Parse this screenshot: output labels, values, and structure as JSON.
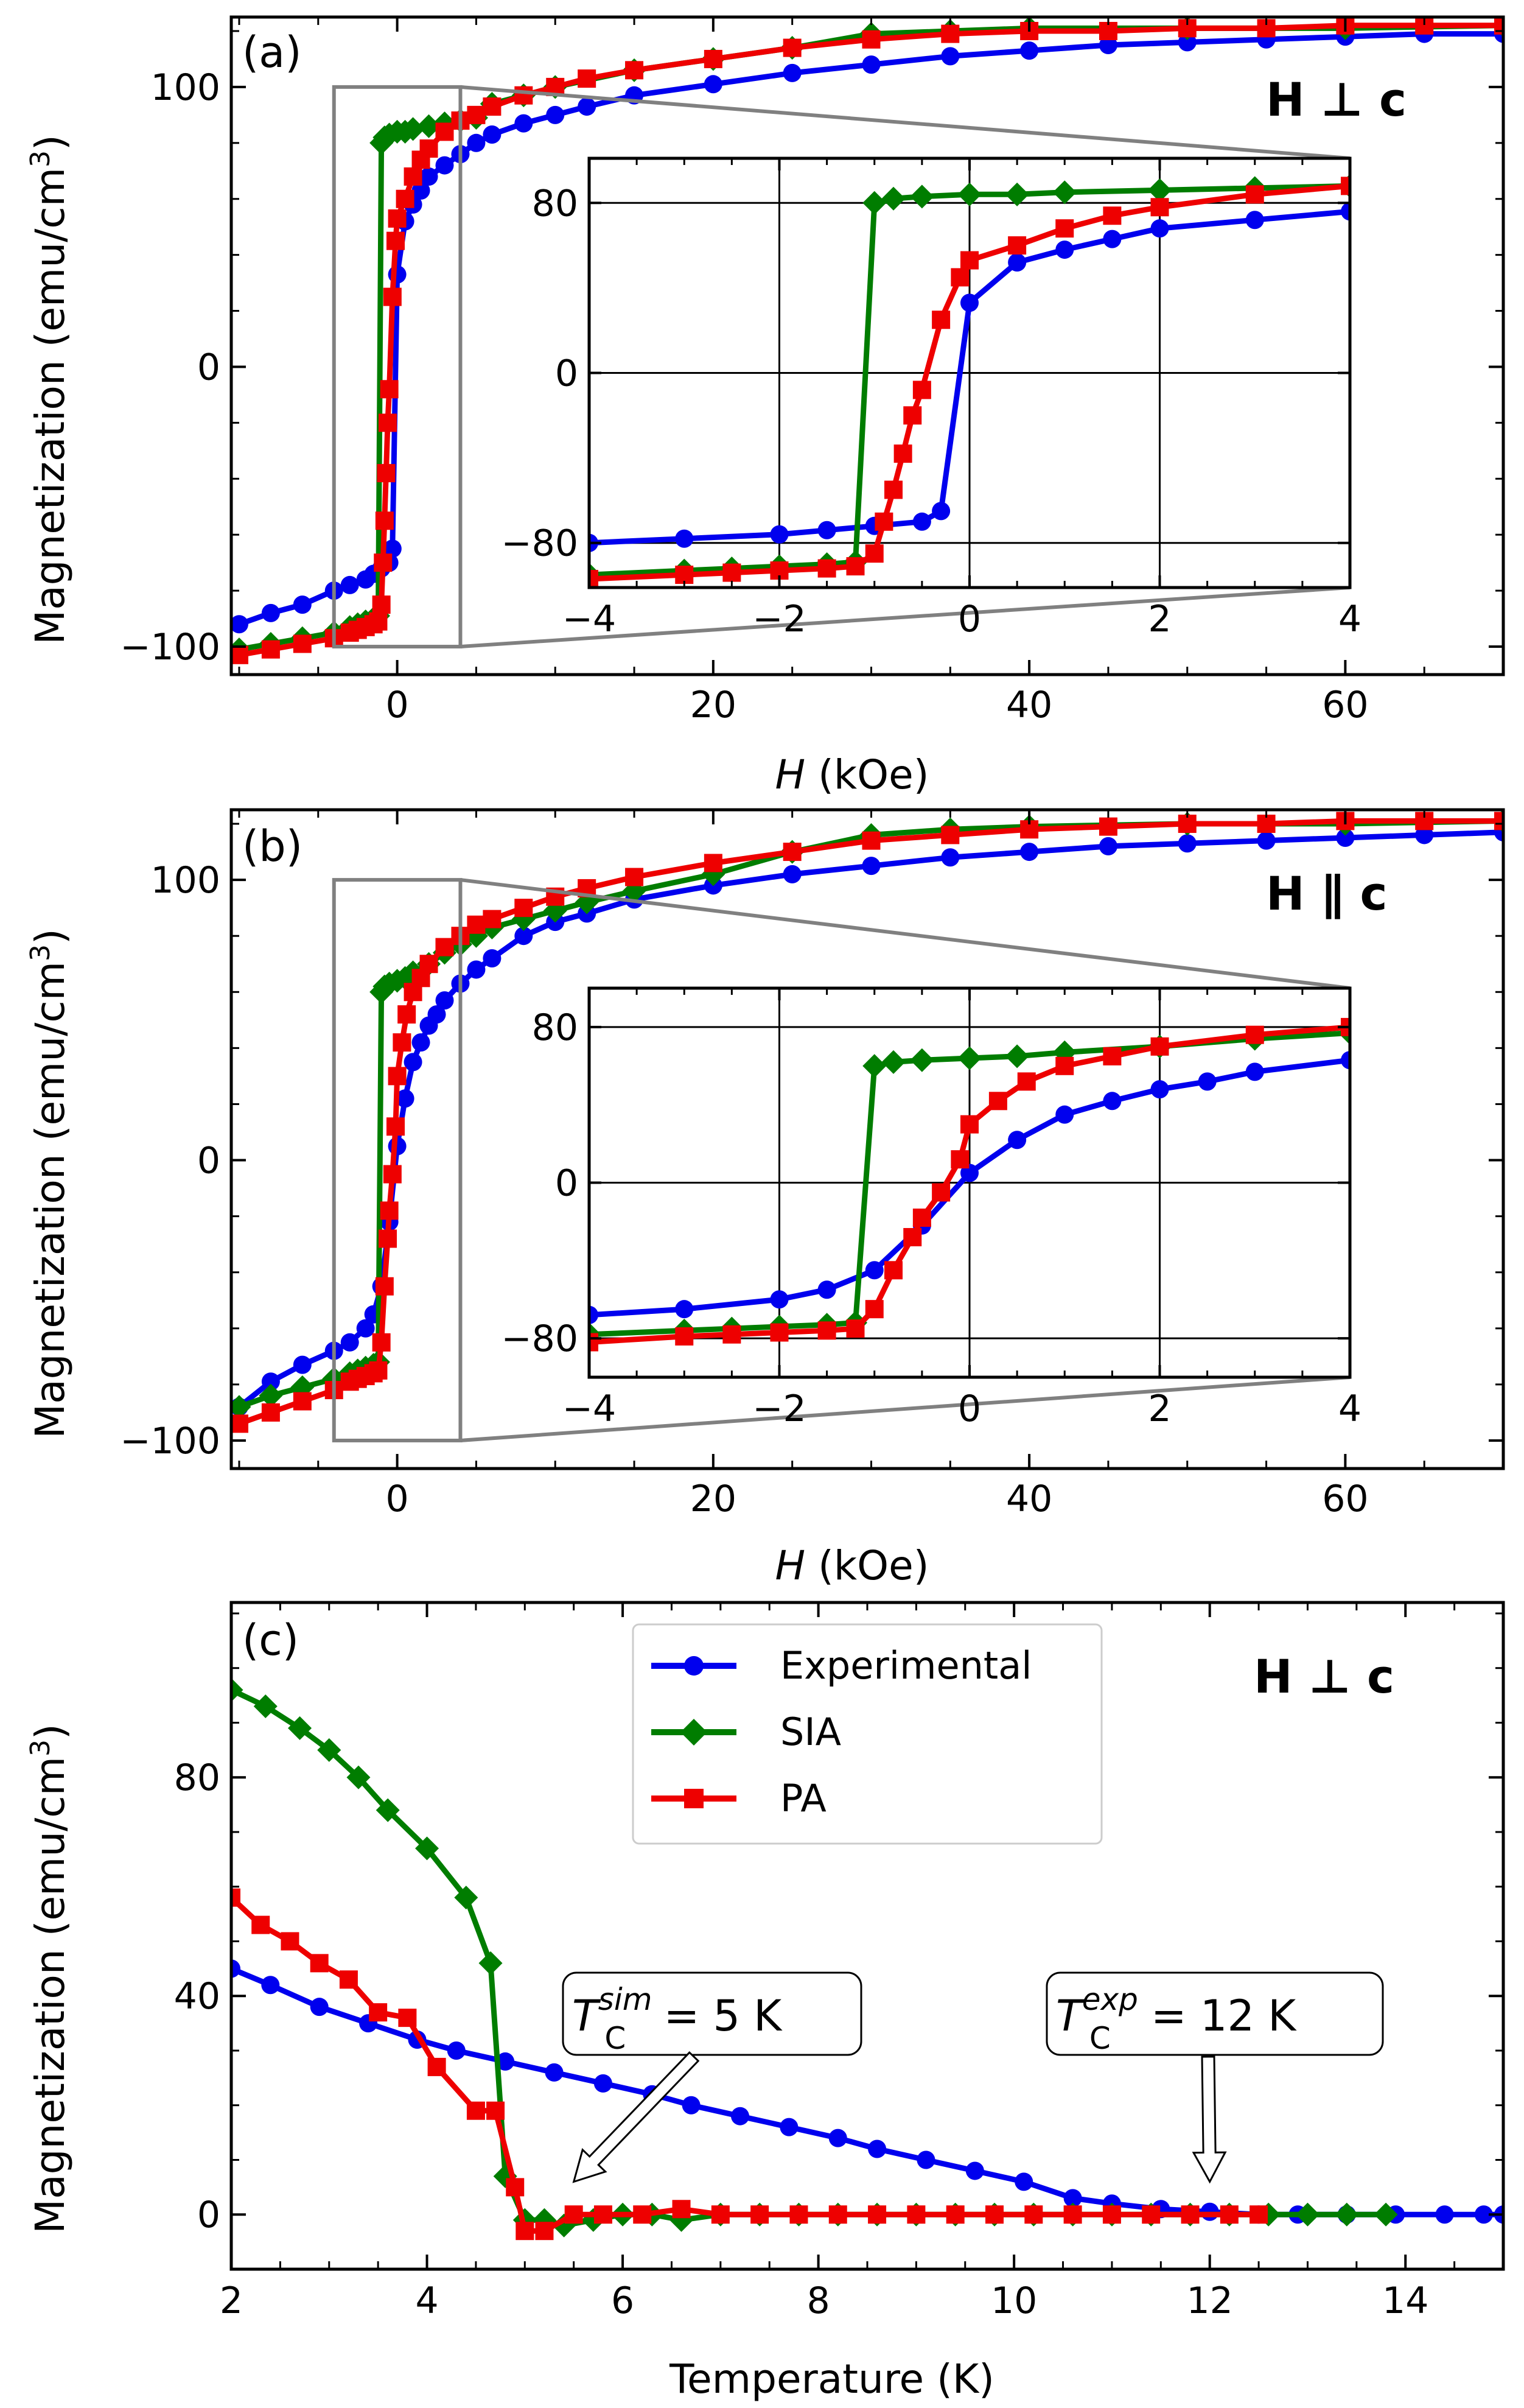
{
  "chart_data": [
    {
      "type": "line",
      "panel_label": "(a)",
      "annotation_bold": "H ⊥ c",
      "xlabel_italic": "H",
      "xlabel_rest": " (kOe)",
      "ylabel": "Magnetization  (emu/cm",
      "ylabel_sup": "3",
      "ylabel_close": ")",
      "xlim": [
        -10.5,
        70
      ],
      "ylim": [
        -110,
        125
      ],
      "xticks": [
        0,
        20,
        40,
        60
      ],
      "xtick_labels": [
        "0",
        "20",
        "40",
        "60"
      ],
      "yticks": [
        -100,
        0,
        100
      ],
      "ytick_labels": [
        "−100",
        "0",
        "100"
      ],
      "zoom_box": {
        "x": [
          -4,
          4
        ],
        "y": [
          -100,
          100
        ]
      },
      "inset": {
        "xlim": [
          -4,
          4
        ],
        "ylim": [
          -101,
          101
        ],
        "xticks": [
          -4,
          -2,
          0,
          2,
          4
        ],
        "xtick_labels": [
          "−4",
          "−2",
          "0",
          "2",
          "4"
        ],
        "yticks": [
          -80,
          0,
          80
        ],
        "ytick_labels": [
          "−80",
          "0",
          "80"
        ],
        "grid": true
      },
      "series": [
        {
          "name": "Experimental",
          "color": "#0000ee",
          "marker": "circle",
          "x": [
            -10,
            -8,
            -6,
            -4,
            -3,
            -2,
            -1.5,
            -1,
            -0.5,
            -0.3,
            0,
            0.5,
            1,
            1.5,
            2,
            3,
            4,
            5,
            6,
            8,
            10,
            12,
            15,
            20,
            25,
            30,
            35,
            40,
            45,
            50,
            55,
            60,
            65,
            70
          ],
          "y": [
            -92,
            -88,
            -85,
            -80,
            -78,
            -76,
            -74,
            -72,
            -70,
            -65,
            33,
            52,
            58,
            63,
            68,
            72,
            76,
            80,
            83,
            87,
            90,
            93,
            97,
            101,
            105,
            108,
            111,
            113,
            115,
            116,
            117,
            118,
            119,
            119
          ]
        },
        {
          "name": "SIA",
          "color": "#007d00",
          "marker": "diamond",
          "x": [
            -10,
            -8,
            -6,
            -4,
            -3,
            -2.5,
            -2,
            -1.5,
            -1.2,
            -1,
            -0.8,
            -0.5,
            0,
            0.5,
            1,
            2,
            3,
            4,
            5,
            6,
            8,
            10,
            15,
            20,
            25,
            30,
            35,
            40,
            50,
            60,
            70
          ],
          "y": [
            -101,
            -99,
            -97,
            -95,
            -93,
            -92,
            -91,
            -90,
            -89,
            80,
            82,
            83,
            84,
            84,
            85,
            86,
            87,
            88,
            89,
            94,
            97,
            100,
            106,
            110,
            114,
            119,
            120,
            121,
            121,
            121,
            122
          ]
        },
        {
          "name": "PA",
          "color": "#ee0000",
          "marker": "square",
          "x": [
            -10,
            -8,
            -6,
            -4,
            -3,
            -2.5,
            -2,
            -1.5,
            -1.2,
            -1,
            -0.9,
            -0.8,
            -0.7,
            -0.6,
            -0.5,
            -0.3,
            -0.1,
            0,
            0.5,
            1,
            1.5,
            2,
            3,
            4,
            5,
            6,
            8,
            10,
            12,
            15,
            20,
            25,
            30,
            35,
            40,
            45,
            50,
            55,
            60,
            65,
            70
          ],
          "y": [
            -103,
            -101,
            -99,
            -97,
            -95,
            -94,
            -93,
            -92,
            -91,
            -85,
            -70,
            -55,
            -38,
            -20,
            -8,
            25,
            45,
            53,
            60,
            68,
            74,
            78,
            84,
            88,
            90,
            93,
            97,
            100,
            103,
            106,
            110,
            114,
            117,
            119,
            120,
            120,
            121,
            121,
            122,
            122,
            122
          ]
        }
      ]
    },
    {
      "type": "line",
      "panel_label": "(b)",
      "annotation_bold": "H ∥ c",
      "xlabel_italic": "H",
      "xlabel_rest": " (kOe)",
      "ylabel": "Magnetization  (emu/cm",
      "ylabel_sup": "3",
      "ylabel_close": ")",
      "xlim": [
        -10.5,
        70
      ],
      "ylim": [
        -110,
        125
      ],
      "xticks": [
        0,
        20,
        40,
        60
      ],
      "xtick_labels": [
        "0",
        "20",
        "40",
        "60"
      ],
      "yticks": [
        -100,
        0,
        100
      ],
      "ytick_labels": [
        "−100",
        "0",
        "100"
      ],
      "zoom_box": {
        "x": [
          -4,
          4
        ],
        "y": [
          -100,
          100
        ]
      },
      "inset": {
        "xlim": [
          -4,
          4
        ],
        "ylim": [
          -100,
          100
        ],
        "xticks": [
          -4,
          -2,
          0,
          2,
          4
        ],
        "xtick_labels": [
          "−4",
          "−2",
          "0",
          "2",
          "4"
        ],
        "yticks": [
          -80,
          0,
          80
        ],
        "ytick_labels": [
          "−80",
          "0",
          "80"
        ],
        "grid": true
      },
      "series": [
        {
          "name": "Experimental",
          "color": "#0000ee",
          "marker": "circle",
          "x": [
            -10,
            -8,
            -6,
            -4,
            -3,
            -2,
            -1.5,
            -1,
            -0.5,
            0,
            0.5,
            1,
            1.5,
            2,
            2.5,
            3,
            4,
            5,
            6,
            8,
            10,
            12,
            15,
            20,
            25,
            30,
            35,
            40,
            45,
            50,
            55,
            60,
            65,
            70
          ],
          "y": [
            -88,
            -79,
            -73,
            -68,
            -65,
            -60,
            -55,
            -45,
            -22,
            5,
            22,
            35,
            42,
            48,
            52,
            57,
            63,
            68,
            72,
            80,
            85,
            88,
            93,
            98,
            102,
            105,
            108,
            110,
            112,
            113,
            114,
            115,
            116,
            117
          ]
        },
        {
          "name": "SIA",
          "color": "#007d00",
          "marker": "diamond",
          "x": [
            -10,
            -8,
            -6,
            -4,
            -3,
            -2.5,
            -2,
            -1.5,
            -1.2,
            -1,
            -0.8,
            -0.5,
            0,
            0.5,
            1,
            2,
            3,
            4,
            5,
            6,
            8,
            10,
            12,
            15,
            20,
            25,
            30,
            35,
            40,
            50,
            60,
            70
          ],
          "y": [
            -88,
            -84,
            -81,
            -78,
            -76,
            -75,
            -74,
            -73,
            -72,
            60,
            62,
            63,
            64,
            65,
            67,
            70,
            74,
            77,
            80,
            83,
            86,
            89,
            92,
            96,
            102,
            110,
            116,
            118,
            119,
            120,
            120,
            121
          ]
        },
        {
          "name": "PA",
          "color": "#ee0000",
          "marker": "square",
          "x": [
            -10,
            -8,
            -6,
            -4,
            -3,
            -2.5,
            -2,
            -1.5,
            -1.2,
            -1,
            -0.8,
            -0.6,
            -0.5,
            -0.3,
            -0.1,
            0,
            0.3,
            0.6,
            1,
            1.5,
            2,
            3,
            4,
            5,
            6,
            8,
            10,
            12,
            15,
            20,
            25,
            30,
            35,
            40,
            45,
            50,
            55,
            60,
            65,
            70
          ],
          "y": [
            -94,
            -90,
            -86,
            -82,
            -79,
            -78,
            -77,
            -76,
            -75,
            -65,
            -45,
            -28,
            -18,
            -5,
            12,
            30,
            42,
            52,
            60,
            65,
            70,
            76,
            80,
            84,
            86,
            90,
            94,
            97,
            101,
            106,
            110,
            114,
            116,
            118,
            119,
            120,
            120,
            121,
            121,
            121
          ]
        }
      ]
    },
    {
      "type": "line",
      "panel_label": "(c)",
      "annotation_bold": "H ⊥ c",
      "xlabel": "Temperature (K)",
      "ylabel": "Magnetization  (emu/cm",
      "ylabel_sup": "3",
      "ylabel_close": ")",
      "xlim": [
        2,
        15
      ],
      "ylim": [
        -10,
        112
      ],
      "xticks": [
        2,
        4,
        6,
        8,
        10,
        12,
        14
      ],
      "xtick_labels": [
        "2",
        "4",
        "6",
        "8",
        "10",
        "12",
        "14"
      ],
      "yticks": [
        0,
        40,
        80
      ],
      "ytick_labels": [
        "0",
        "40",
        "80"
      ],
      "legend": {
        "position": "upper-center",
        "entries": [
          "Experimental",
          "SIA",
          "PA"
        ]
      },
      "callouts": [
        {
          "main": "T",
          "sup": "sim",
          "sub": "C",
          "rest": " = 5 K",
          "arrow_to": [
            5.5,
            6
          ]
        },
        {
          "main": "T",
          "sup": "exp",
          "sub": "C",
          "rest": " = 12 K",
          "arrow_to": [
            12,
            6
          ]
        }
      ],
      "series": [
        {
          "name": "Experimental",
          "color": "#0000ee",
          "marker": "circle",
          "x": [
            2,
            2.4,
            2.9,
            3.4,
            3.9,
            4.3,
            4.8,
            5.3,
            5.8,
            6.3,
            6.7,
            7.2,
            7.7,
            8.2,
            8.6,
            9.1,
            9.6,
            10.1,
            10.6,
            11.0,
            11.5,
            12.0,
            12.5,
            12.9,
            13.4,
            13.9,
            14.4,
            14.8,
            15
          ],
          "y": [
            45,
            42,
            38,
            35,
            32,
            30,
            28,
            26,
            24,
            22,
            20,
            18,
            16,
            14,
            12,
            10,
            8,
            6,
            3,
            2,
            1,
            0.5,
            0,
            0,
            0,
            0,
            0,
            0,
            0
          ]
        },
        {
          "name": "SIA",
          "color": "#007d00",
          "marker": "diamond",
          "x": [
            2,
            2.35,
            2.7,
            3.0,
            3.3,
            3.6,
            4.0,
            4.4,
            4.65,
            4.8,
            5.0,
            5.2,
            5.4,
            5.7,
            6.0,
            6.3,
            6.6,
            7.0,
            7.4,
            7.8,
            8.2,
            8.6,
            9.0,
            9.4,
            9.8,
            10.2,
            10.6,
            11.0,
            11.4,
            11.8,
            12.2,
            12.6,
            13.0,
            13.4,
            13.8
          ],
          "y": [
            96,
            93,
            89,
            85,
            80,
            74,
            67,
            58,
            46,
            7,
            -1,
            -1,
            -2,
            -1,
            0,
            0,
            -1,
            0,
            0,
            0,
            0,
            0,
            0,
            0,
            0,
            0,
            0,
            0,
            0,
            0,
            0,
            0,
            0,
            0,
            0
          ]
        },
        {
          "name": "PA",
          "color": "#ee0000",
          "marker": "square",
          "x": [
            2,
            2.3,
            2.6,
            2.9,
            3.2,
            3.5,
            3.8,
            4.1,
            4.5,
            4.7,
            4.9,
            5.0,
            5.2,
            5.5,
            5.8,
            6.2,
            6.6,
            7.0,
            7.4,
            7.8,
            8.2,
            8.6,
            9.0,
            9.4,
            9.8,
            10.2,
            10.6,
            11.0,
            11.4,
            11.8,
            12.2,
            12.5
          ],
          "y": [
            58,
            53,
            50,
            46,
            43,
            37,
            36,
            27,
            19,
            19,
            5,
            -3,
            -3,
            0,
            0,
            0,
            1,
            0,
            0,
            0,
            0,
            0,
            0,
            0,
            0,
            0,
            0,
            0,
            0,
            0,
            0,
            0
          ]
        }
      ]
    }
  ]
}
